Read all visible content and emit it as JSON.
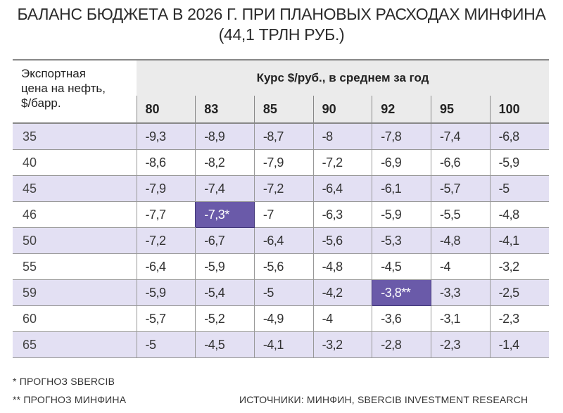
{
  "title": {
    "line1": "БАЛАНС БЮДЖЕТА В 2026 Г. ПРИ ПЛАНОВЫХ РАСХОДАХ МИНФИНА",
    "line2": "(44,1 ТРЛН РУБ.)"
  },
  "table": {
    "row_header": [
      "Экспортная",
      "цена на нефть,",
      "$/барр."
    ],
    "col_header": "Курс $/руб., в среднем за год",
    "columns": [
      "80",
      "83",
      "85",
      "90",
      "92",
      "95",
      "100"
    ],
    "rows": [
      {
        "label": "35",
        "cells": [
          "-9,3",
          "-8,9",
          "-8,7",
          "-8",
          "-7,8",
          "-7,4",
          "-6,8"
        ]
      },
      {
        "label": "40",
        "cells": [
          "-8,6",
          "-8,2",
          "-7,9",
          "-7,2",
          "-6,9",
          "-6,6",
          "-5,9"
        ]
      },
      {
        "label": "45",
        "cells": [
          "-7,9",
          "-7,4",
          "-7,2",
          "-6,4",
          "-6,1",
          "-5,7",
          "-5"
        ]
      },
      {
        "label": "46",
        "cells": [
          "-7,7",
          "-7,3*",
          "-7",
          "-6,3",
          "-5,9",
          "-5,5",
          "-4,8"
        ]
      },
      {
        "label": "50",
        "cells": [
          "-7,2",
          "-6,7",
          "-6,4",
          "-5,6",
          "-5,3",
          "-4,8",
          "-4,1"
        ]
      },
      {
        "label": "55",
        "cells": [
          "-6,4",
          "-5,9",
          "-5,6",
          "-4,8",
          "-4,5",
          "-4",
          "-3,2"
        ]
      },
      {
        "label": "59",
        "cells": [
          "-5,9",
          "-5,4",
          "-5",
          "-4,2",
          "-3,8**",
          "-3,3",
          "-2,5"
        ]
      },
      {
        "label": "60",
        "cells": [
          "-5,7",
          "-5,2",
          "-4,9",
          "-4",
          "-3,6",
          "-3,1",
          "-2,3"
        ]
      },
      {
        "label": "65",
        "cells": [
          "-5",
          "-4,5",
          "-4,1",
          "-3,2",
          "-2,8",
          "-2,3",
          "-1,4"
        ]
      }
    ]
  },
  "chart_data": {
    "type": "table",
    "title": "БАЛАНС БЮДЖЕТА В 2026 Г. ПРИ ПЛАНОВЫХ РАСХОДАХ МИНФИНА (44,1 ТРЛН РУБ.)",
    "row_axis": "Экспортная цена на нефть, $/барр.",
    "col_axis": "Курс $/руб., в среднем за год",
    "x": [
      80,
      83,
      85,
      90,
      92,
      95,
      100
    ],
    "y": [
      35,
      40,
      45,
      46,
      50,
      55,
      59,
      60,
      65
    ],
    "values": [
      [
        -9.3,
        -8.9,
        -8.7,
        -8.0,
        -7.8,
        -7.4,
        -6.8
      ],
      [
        -8.6,
        -8.2,
        -7.9,
        -7.2,
        -6.9,
        -6.6,
        -5.9
      ],
      [
        -7.9,
        -7.4,
        -7.2,
        -6.4,
        -6.1,
        -5.7,
        -5.0
      ],
      [
        -7.7,
        -7.3,
        -7.0,
        -6.3,
        -5.9,
        -5.5,
        -4.8
      ],
      [
        -7.2,
        -6.7,
        -6.4,
        -5.6,
        -5.3,
        -4.8,
        -4.1
      ],
      [
        -6.4,
        -5.9,
        -5.6,
        -4.8,
        -4.5,
        -4.0,
        -3.2
      ],
      [
        -5.9,
        -5.4,
        -5.0,
        -4.2,
        -3.8,
        -3.3,
        -2.5
      ],
      [
        -5.7,
        -5.2,
        -4.9,
        -4.0,
        -3.6,
        -3.1,
        -2.3
      ],
      [
        -5.0,
        -4.5,
        -4.1,
        -3.2,
        -2.8,
        -2.3,
        -1.4
      ]
    ],
    "highlights": [
      {
        "oil": 46,
        "fx": 83,
        "value": -7.3,
        "marker": "*"
      },
      {
        "oil": 59,
        "fx": 92,
        "value": -3.8,
        "marker": "**"
      }
    ]
  },
  "footnotes": {
    "note1": "* ПРОГНОЗ SBERCIB",
    "note2": "** ПРОГНОЗ МИНФИНА",
    "source": "ИСТОЧНИКИ: МИНФИН, SBERCIB INVESTMENT RESEARCH"
  },
  "colors": {
    "shade": "#e3e0f3",
    "highlight": "#6a5aa9",
    "header_bg": "#ebebeb"
  }
}
